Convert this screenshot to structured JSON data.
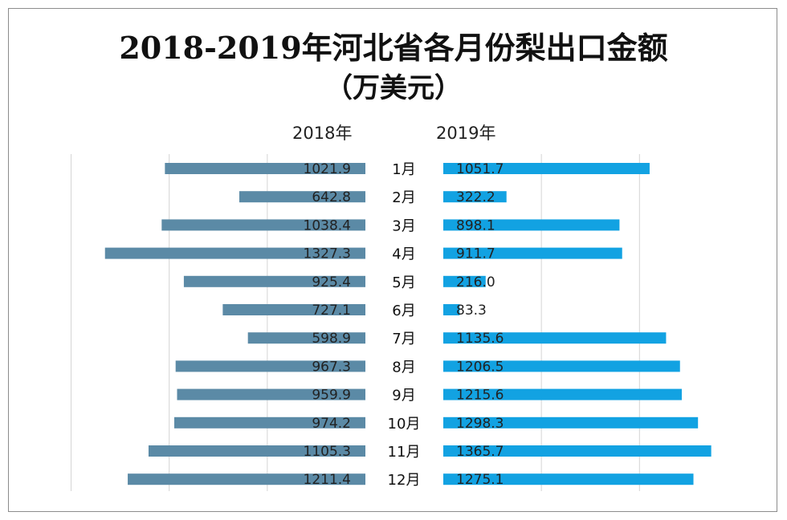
{
  "chart_data": {
    "type": "bar",
    "orientation": "horizontal-butterfly",
    "title": "2018-2019年河北省各月份梨出口金额",
    "subtitle": "（万美元）",
    "categories": [
      "1月",
      "2月",
      "3月",
      "4月",
      "5月",
      "6月",
      "7月",
      "8月",
      "9月",
      "10月",
      "11月",
      "12月"
    ],
    "series": [
      {
        "name": "2018年",
        "color": "#5b8aa6",
        "values": [
          1021.9,
          642.8,
          1038.4,
          1327.3,
          925.4,
          727.1,
          598.9,
          967.3,
          959.9,
          974.2,
          1105.3,
          1211.4
        ]
      },
      {
        "name": "2019年",
        "color": "#12a2e2",
        "values": [
          1051.7,
          322.2,
          898.1,
          911.7,
          216.0,
          83.3,
          1135.6,
          1206.5,
          1215.6,
          1298.3,
          1365.7,
          1275.1
        ]
      }
    ],
    "xlim": [
      0,
      1400
    ],
    "grid": true,
    "data_labels": true
  }
}
